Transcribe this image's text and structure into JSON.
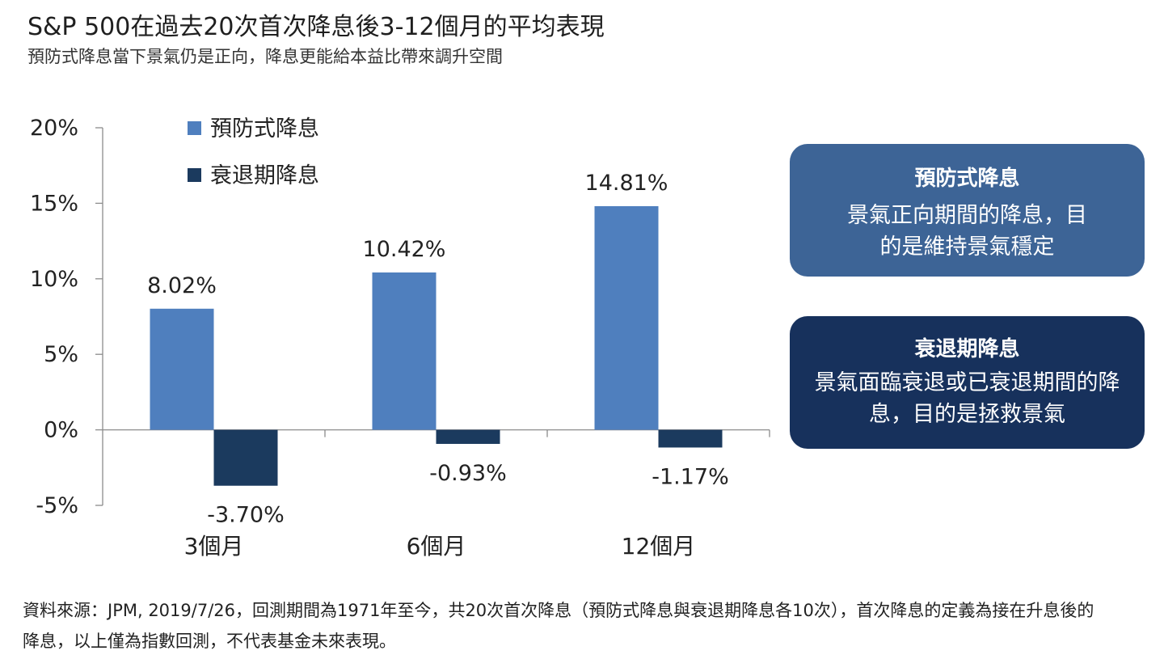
{
  "title": "S&P 500在過去20次首次降息後3-12個月的平均表現",
  "subtitle": "預防式降息當下景氣仍是正向，降息更能給本益比帶來調升空間",
  "colors": {
    "preventive": "#4f7fbe",
    "recession": "#1b3a5e",
    "box_preventive": "#3d6496",
    "box_recession": "#17315c"
  },
  "chart_data": {
    "type": "bar",
    "categories": [
      "3個月",
      "6個月",
      "12個月"
    ],
    "series": [
      {
        "name": "預防式降息",
        "values": [
          8.02,
          10.42,
          14.81
        ],
        "labels": [
          "8.02%",
          "10.42%",
          "14.81%"
        ]
      },
      {
        "name": "衰退期降息",
        "values": [
          -3.7,
          -0.93,
          -1.17
        ],
        "labels": [
          "-3.70%",
          "-0.93%",
          "-1.17%"
        ]
      }
    ],
    "yticks": [
      20,
      15,
      10,
      5,
      0,
      -5
    ],
    "ytick_labels": [
      "20%",
      "15%",
      "10%",
      "5%",
      "0%",
      "-5%"
    ],
    "ylim": [
      -5,
      20
    ],
    "legend_position": "top-left",
    "grid": false
  },
  "info_boxes": {
    "preventive": {
      "title": "預防式降息",
      "body": "景氣正向期間的降息，目的是維持景氣穩定"
    },
    "recession": {
      "title": "衰退期降息",
      "body": "景氣面臨衰退或已衰退期間的降息，目的是拯救景氣"
    }
  },
  "footnote": "資料來源：JPM, 2019/7/26，回測期間為1971年至今，共20次首次降息（預防式降息與衰退期降息各10次），首次降息的定義為接在升息後的降息，以上僅為指數回測，不代表基金未來表現。"
}
